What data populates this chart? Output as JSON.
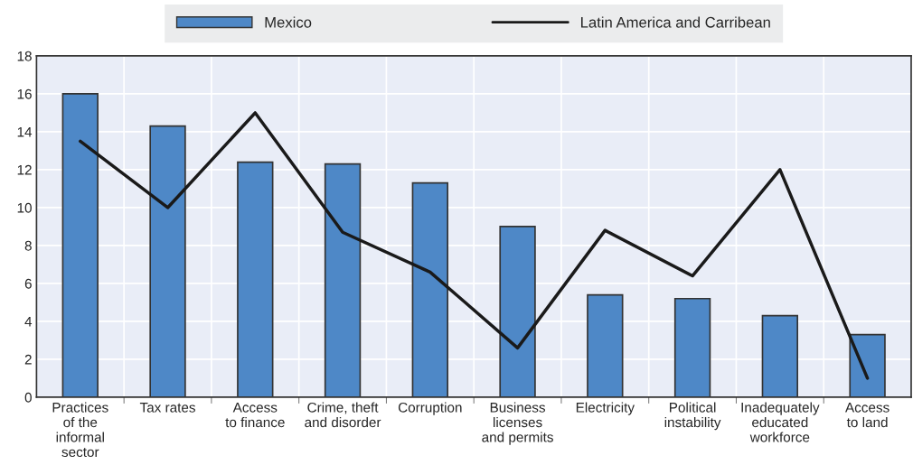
{
  "chart_data": {
    "type": "bar",
    "categories": [
      "Practices\nof the\ninformal\nsector",
      "Tax rates",
      "Access\nto finance",
      "Crime, theft\nand disorder",
      "Corruption",
      "Business\nlicenses\nand permits",
      "Electricity",
      "Political\ninstability",
      "Inadequately\neducated\nworkforce",
      "Access\nto land"
    ],
    "series": [
      {
        "name": "Mexico",
        "color": "#4e88c7",
        "values": [
          16.0,
          14.3,
          12.4,
          12.3,
          11.3,
          9.0,
          5.4,
          5.2,
          4.3,
          3.3
        ]
      },
      {
        "name": "Latin America and Carribean",
        "type": "line",
        "color": "#1a1a1a",
        "values": [
          13.5,
          10.0,
          15.0,
          8.7,
          6.6,
          2.6,
          8.8,
          6.4,
          12.0,
          1.0
        ]
      }
    ],
    "ylim": [
      0,
      18
    ],
    "yticks": [
      0,
      2,
      4,
      6,
      8,
      10,
      12,
      14,
      16,
      18
    ],
    "grid": true,
    "legend": "top"
  }
}
